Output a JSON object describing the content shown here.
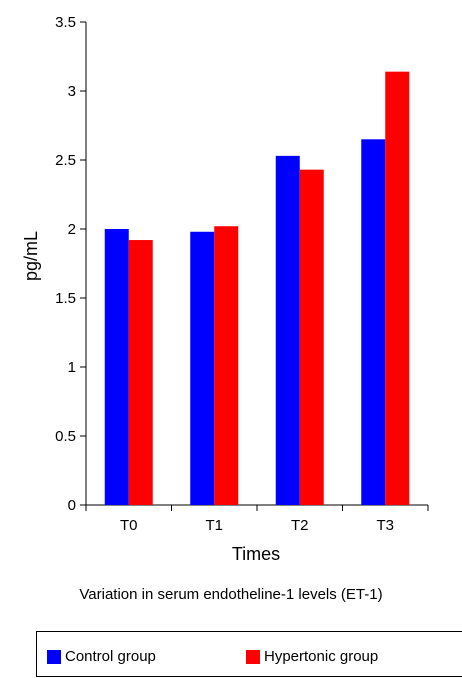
{
  "chart_data": {
    "type": "bar",
    "categories": [
      "T0",
      "T1",
      "T2",
      "T3"
    ],
    "series": [
      {
        "name": "Control group",
        "color": "#0000ff",
        "values": [
          2.0,
          1.98,
          2.53,
          2.65
        ]
      },
      {
        "name": "Hypertonic group",
        "color": "#ff0000",
        "values": [
          1.92,
          2.02,
          2.43,
          3.14
        ]
      }
    ],
    "yticks": [
      "0",
      "0.5",
      "1",
      "1.5",
      "2",
      "2.5",
      "3",
      "3.5"
    ],
    "ylim": [
      0,
      3.5
    ],
    "xlabel": "Times",
    "ylabel": "pg/mL",
    "caption": "Variation in serum endotheline-1 levels (ET-1)",
    "grid": false,
    "legend_position": "bottom"
  }
}
